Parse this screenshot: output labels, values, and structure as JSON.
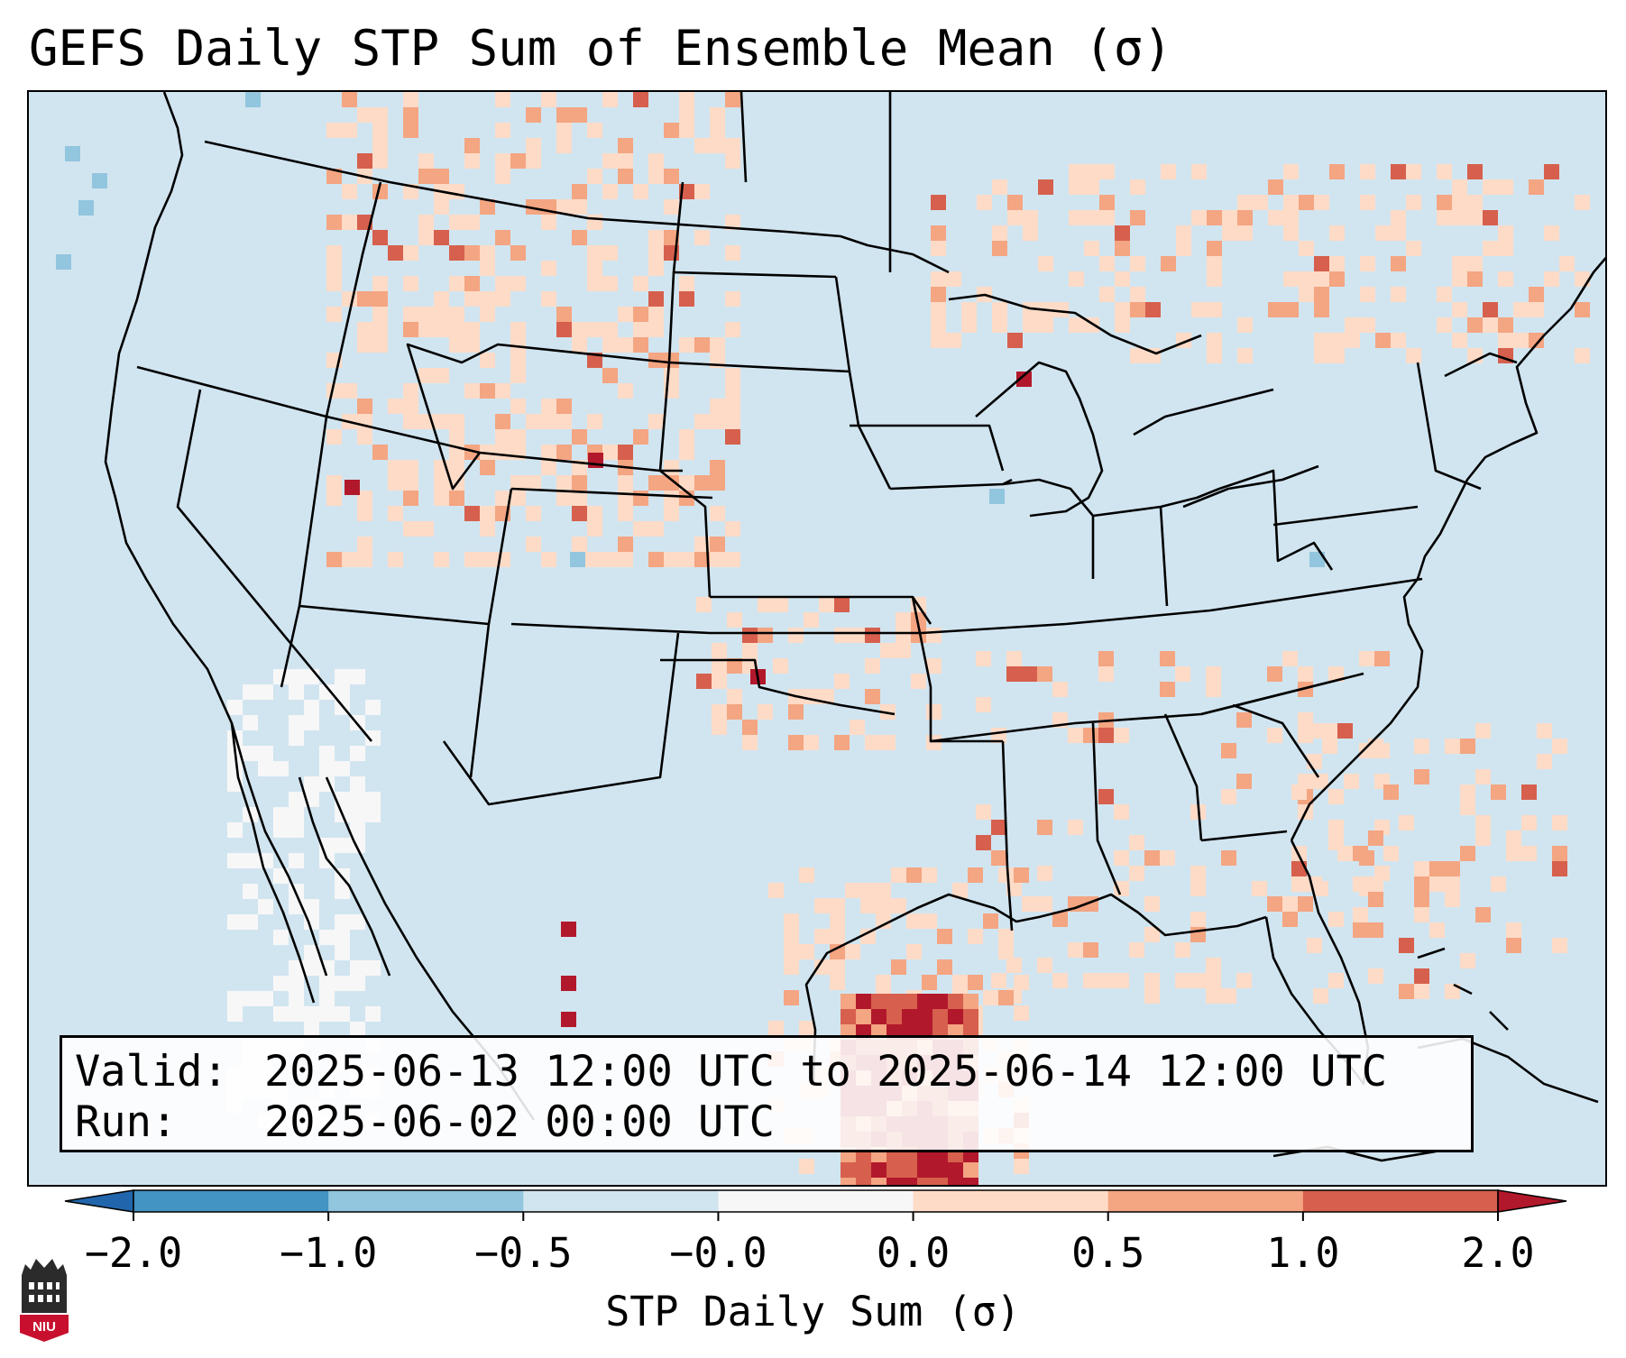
{
  "title": "GEFS Daily STP Sum of Ensemble Mean (σ)",
  "info": {
    "valid_label": "Valid:",
    "valid_value": "2025-06-13 12:00 UTC to 2025-06-14 12:00 UTC",
    "run_label": "Run:",
    "run_value": "2025-06-02 00:00 UTC"
  },
  "colorbar": {
    "label": "STP Daily Sum (σ)",
    "ticks": [
      "−2.0",
      "−1.0",
      "−0.5",
      "−0.0",
      "0.0",
      "0.5",
      "1.0",
      "2.0"
    ],
    "colors": [
      "#4393c3",
      "#92c5de",
      "#d1e5f0",
      "#f7f7f7",
      "#fddbc7",
      "#f4a582",
      "#d6604d"
    ],
    "extend_low_color": "#2166ac",
    "extend_high_color": "#b2182b"
  },
  "map": {
    "background_color": "#d1e5f0",
    "land_color": "#d1e5f0",
    "border_color": "#000000"
  },
  "logo": {
    "text": "NIU",
    "color": "#c8102e"
  }
}
